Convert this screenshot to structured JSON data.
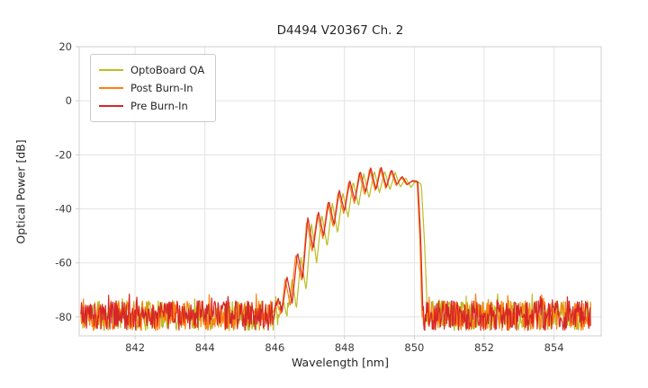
{
  "chart_data": {
    "type": "line",
    "title": "D4494 V20367 Ch. 2",
    "xlabel": "Wavelength [nm]",
    "ylabel": "Optical Power [dB]",
    "xlim": [
      840.4,
      855.35
    ],
    "ylim": [
      -87,
      20
    ],
    "xticks": [
      842,
      844,
      846,
      848,
      850,
      852,
      854
    ],
    "yticks": [
      20,
      0,
      -20,
      -40,
      -60,
      -80
    ],
    "grid": true,
    "grid_color": "#e3e3e3",
    "spine_color": "#cfcfcf",
    "text_color": "#3a3a3a",
    "legend_position": "upper left",
    "data_range_nm": [
      840.45,
      855.05
    ],
    "noise_floor": {
      "mean": -80,
      "min": -85,
      "max": -71.5,
      "sample_step_nm": 0.018
    },
    "series": [
      {
        "name": "OptoBoard QA",
        "color": "#bcbd22",
        "seed": 11,
        "peak": [
          [
            846.1,
            -81
          ],
          [
            846.25,
            -74
          ],
          [
            846.35,
            -80
          ],
          [
            846.5,
            -66
          ],
          [
            846.62,
            -77
          ],
          [
            846.75,
            -58
          ],
          [
            846.9,
            -70
          ],
          [
            847.05,
            -45
          ],
          [
            847.2,
            -60
          ],
          [
            847.35,
            -42
          ],
          [
            847.5,
            -54
          ],
          [
            847.65,
            -38
          ],
          [
            847.8,
            -49
          ],
          [
            847.95,
            -34
          ],
          [
            848.1,
            -43
          ],
          [
            848.25,
            -30
          ],
          [
            848.4,
            -39
          ],
          [
            848.55,
            -27
          ],
          [
            848.7,
            -36
          ],
          [
            848.85,
            -26
          ],
          [
            849.0,
            -34
          ],
          [
            849.15,
            -26
          ],
          [
            849.3,
            -33
          ],
          [
            849.45,
            -26.5
          ],
          [
            849.6,
            -32
          ],
          [
            849.75,
            -28.5
          ],
          [
            849.9,
            -32
          ],
          [
            850.05,
            -29.5
          ],
          [
            850.2,
            -31
          ],
          [
            850.3,
            -55
          ],
          [
            850.38,
            -81
          ]
        ]
      },
      {
        "name": "Post Burn-In",
        "color": "#ff7f0e",
        "seed": 22,
        "peak": [
          [
            845.9,
            -81
          ],
          [
            846.05,
            -74
          ],
          [
            846.18,
            -80
          ],
          [
            846.3,
            -66
          ],
          [
            846.45,
            -76
          ],
          [
            846.6,
            -57
          ],
          [
            846.78,
            -67
          ],
          [
            846.92,
            -44
          ],
          [
            847.07,
            -56
          ],
          [
            847.22,
            -42
          ],
          [
            847.38,
            -51
          ],
          [
            847.52,
            -37.5
          ],
          [
            847.68,
            -47
          ],
          [
            847.82,
            -33.5
          ],
          [
            847.98,
            -42
          ],
          [
            848.12,
            -30
          ],
          [
            848.28,
            -38
          ],
          [
            848.42,
            -26.5
          ],
          [
            848.58,
            -35
          ],
          [
            848.72,
            -25
          ],
          [
            848.88,
            -33.5
          ],
          [
            849.02,
            -24.8
          ],
          [
            849.18,
            -32.5
          ],
          [
            849.32,
            -25.8
          ],
          [
            849.48,
            -31.5
          ],
          [
            849.62,
            -28.2
          ],
          [
            849.78,
            -31.2
          ],
          [
            849.92,
            -29.8
          ],
          [
            850.08,
            -30.2
          ],
          [
            850.16,
            -52
          ],
          [
            850.22,
            -81
          ]
        ]
      },
      {
        "name": "Pre Burn-In",
        "color": "#d62728",
        "seed": 33,
        "peak": [
          [
            845.95,
            -81
          ],
          [
            846.1,
            -73
          ],
          [
            846.2,
            -79
          ],
          [
            846.35,
            -65
          ],
          [
            846.5,
            -75
          ],
          [
            846.65,
            -56
          ],
          [
            846.8,
            -66
          ],
          [
            846.95,
            -43
          ],
          [
            847.1,
            -55
          ],
          [
            847.25,
            -41
          ],
          [
            847.4,
            -50
          ],
          [
            847.55,
            -37
          ],
          [
            847.7,
            -46
          ],
          [
            847.85,
            -33
          ],
          [
            848.0,
            -41
          ],
          [
            848.15,
            -29.5
          ],
          [
            848.3,
            -37
          ],
          [
            848.45,
            -26
          ],
          [
            848.6,
            -34
          ],
          [
            848.75,
            -24.7
          ],
          [
            848.9,
            -33
          ],
          [
            849.05,
            -24.5
          ],
          [
            849.2,
            -32
          ],
          [
            849.35,
            -25.5
          ],
          [
            849.5,
            -31
          ],
          [
            849.65,
            -28
          ],
          [
            849.8,
            -31
          ],
          [
            849.95,
            -29.5
          ],
          [
            850.1,
            -30
          ],
          [
            850.18,
            -50
          ],
          [
            850.25,
            -81
          ]
        ]
      }
    ]
  }
}
